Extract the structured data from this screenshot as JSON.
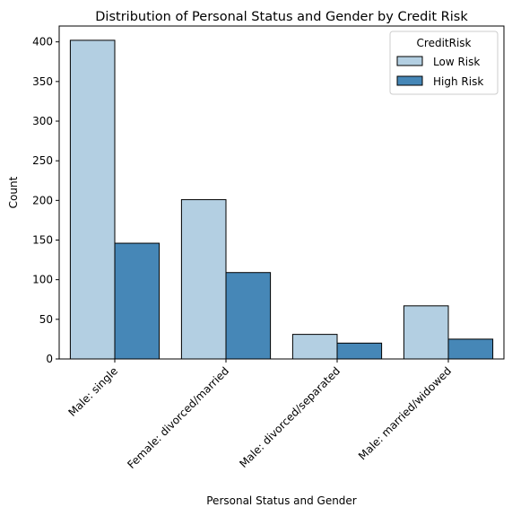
{
  "chart_data": {
    "type": "bar",
    "title": "Distribution of Personal Status and Gender by Credit Risk",
    "xlabel": "Personal Status and Gender",
    "ylabel": "Count",
    "ylim": [
      0,
      420
    ],
    "yticks": [
      0,
      50,
      100,
      150,
      200,
      250,
      300,
      350,
      400
    ],
    "categories": [
      "Male: single",
      "Female: divorced/married",
      "Male: divorced/separated",
      "Male: married/widowed"
    ],
    "series": [
      {
        "name": "Low Risk",
        "values": [
          402,
          201,
          31,
          67
        ],
        "color": "#b3cfe2"
      },
      {
        "name": "High Risk",
        "values": [
          146,
          109,
          20,
          25
        ],
        "color": "#4687b7"
      }
    ],
    "legend": {
      "title": "CreditRisk",
      "position": "top-right"
    },
    "grid": false
  }
}
